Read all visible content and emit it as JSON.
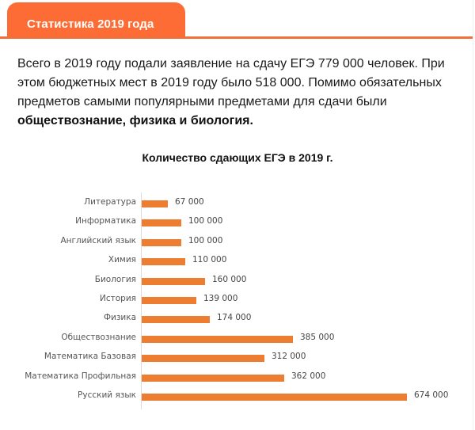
{
  "tab": {
    "label": "Статистика 2019 года"
  },
  "intro": {
    "text": "Всего в 2019 году подали заявление на сдачу ЕГЭ 779 000 человек. При этом бюджетных мест в 2019 году было 518 000. Помимо обязательных предметов самыми популярными предметами для сдачи были ",
    "bold": "обществознание, физика и биология."
  },
  "colors": {
    "accent": "#fe6c35",
    "bar": "#ed7d31"
  },
  "chart_data": {
    "type": "bar",
    "orientation": "horizontal",
    "title": "Количество сдающих ЕГЭ в 2019 г.",
    "xlabel": "",
    "ylabel": "",
    "grid": false,
    "legend": null,
    "categories": [
      "Литература",
      "Информатика",
      "Английский язык",
      "Химия",
      "Биология",
      "История",
      "Физика",
      "Обществознание",
      "Математика Базовая",
      "Математика Профильная",
      "Русский язык"
    ],
    "values": [
      67000,
      100000,
      100000,
      110000,
      160000,
      139000,
      174000,
      385000,
      312000,
      362000,
      674000
    ],
    "value_labels": [
      "67 000",
      "100 000",
      "100 000",
      "110 000",
      "160 000",
      "139 000",
      "174 000",
      "385 000",
      "312 000",
      "362 000",
      "674 000"
    ],
    "xlim": [
      0,
      674000
    ]
  }
}
